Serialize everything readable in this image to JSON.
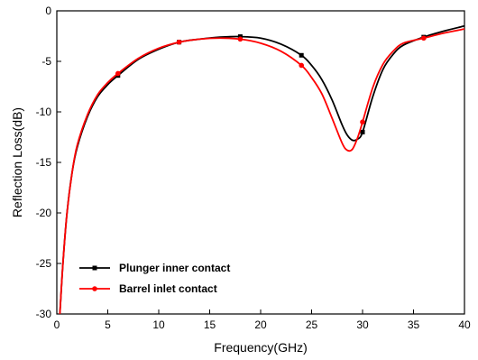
{
  "chart_data": {
    "type": "line",
    "title": "",
    "xlabel": "Frequency(GHz)",
    "ylabel": "Reflection Loss(dB)",
    "xlim": [
      0,
      40
    ],
    "ylim": [
      -30,
      0
    ],
    "x_ticks": [
      0,
      5,
      10,
      15,
      20,
      25,
      30,
      35,
      40
    ],
    "y_ticks": [
      0,
      -5,
      -10,
      -15,
      -20,
      -25,
      -30
    ],
    "grid": false,
    "legend_position": "bottom-left",
    "series": [
      {
        "name": "Plunger inner contact",
        "color": "#000000",
        "marker": "square",
        "x": [
          0.3,
          0.6,
          1,
          1.5,
          2,
          3,
          4,
          5,
          6,
          8,
          10,
          12,
          14,
          16,
          18,
          20,
          22,
          24,
          25,
          26,
          27,
          28,
          28.5,
          29,
          29.5,
          30,
          31,
          32,
          33,
          34,
          36,
          38,
          40
        ],
        "y": [
          -30,
          -25,
          -20,
          -16,
          -13.5,
          -10.5,
          -8.5,
          -7.3,
          -6.4,
          -4.8,
          -3.8,
          -3.1,
          -2.8,
          -2.6,
          -2.55,
          -2.7,
          -3.3,
          -4.4,
          -5.4,
          -6.8,
          -8.8,
          -11.3,
          -12.3,
          -12.8,
          -12.7,
          -12.0,
          -8.5,
          -5.8,
          -4.3,
          -3.4,
          -2.6,
          -2.0,
          -1.5
        ],
        "markers_x": [
          6,
          12,
          18,
          24,
          30,
          36
        ],
        "markers_y": [
          -6.4,
          -3.1,
          -2.55,
          -4.4,
          -12.0,
          -2.6
        ]
      },
      {
        "name": "Barrel inlet contact",
        "color": "#ff0000",
        "marker": "circle",
        "x": [
          0.3,
          0.6,
          1,
          1.5,
          2,
          3,
          4,
          5,
          6,
          8,
          10,
          12,
          14,
          16,
          18,
          20,
          22,
          24,
          25,
          26,
          27,
          28,
          28.5,
          29,
          29.5,
          30,
          31,
          32,
          33,
          34,
          36,
          38,
          40
        ],
        "y": [
          -30,
          -25,
          -20,
          -16,
          -13.3,
          -10.3,
          -8.3,
          -7.1,
          -6.2,
          -4.7,
          -3.7,
          -3.1,
          -2.8,
          -2.7,
          -2.8,
          -3.2,
          -4.0,
          -5.4,
          -6.6,
          -8.2,
          -10.6,
          -13.1,
          -13.8,
          -13.7,
          -12.6,
          -11.0,
          -7.6,
          -5.3,
          -4.0,
          -3.2,
          -2.7,
          -2.2,
          -1.8
        ],
        "markers_x": [
          6,
          12,
          18,
          24,
          30,
          36
        ],
        "markers_y": [
          -6.2,
          -3.1,
          -2.8,
          -5.4,
          -11.0,
          -2.7
        ]
      }
    ]
  }
}
